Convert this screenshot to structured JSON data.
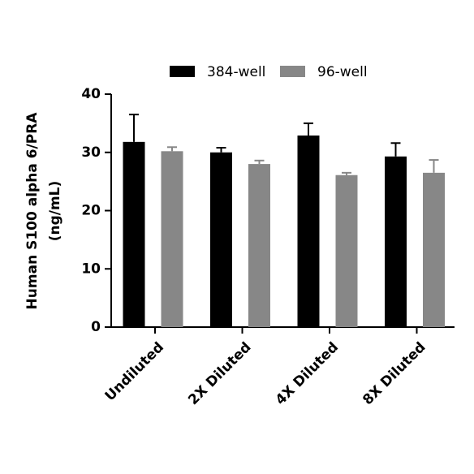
{
  "chart_data": {
    "type": "bar",
    "ylabel": [
      "Human S100 alpha 6/PRA",
      "(ng/mL)"
    ],
    "categories": [
      "Undiluted",
      "2X Diluted",
      "4X Diluted",
      "8X Diluted"
    ],
    "series": [
      {
        "name": "384-well",
        "color": "#000000",
        "values": [
          31.8,
          30.0,
          32.9,
          29.3
        ],
        "errors": [
          4.7,
          0.8,
          2.1,
          2.3
        ]
      },
      {
        "name": "96-well",
        "color": "#878787",
        "values": [
          30.2,
          28.0,
          26.1,
          26.5
        ],
        "errors": [
          0.7,
          0.6,
          0.4,
          2.2
        ]
      }
    ],
    "ylim": [
      0,
      40
    ],
    "yticks": [
      0,
      10,
      20,
      30,
      40
    ],
    "legend": "top"
  }
}
